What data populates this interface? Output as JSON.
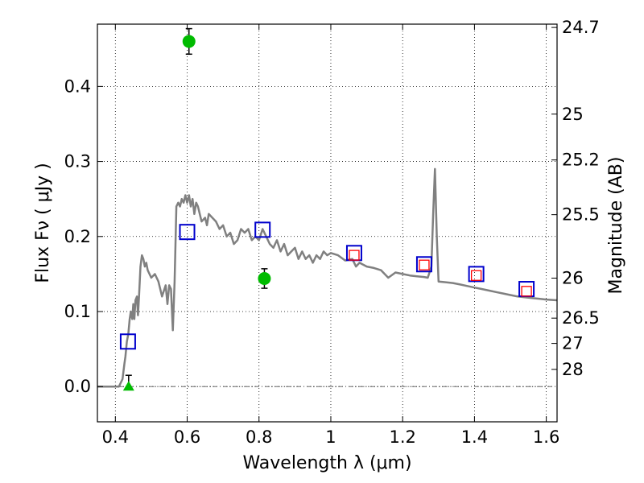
{
  "chart_data": {
    "type": "scatter",
    "title": "",
    "xlabel": "Wavelength  λ (μm)",
    "ylabel": "Flux  Fν  ( μJy )",
    "y2label": "Magnitude (AB)",
    "xlim": [
      0.35,
      1.63
    ],
    "ylim": [
      -0.047,
      0.483
    ],
    "grid": true,
    "legend": "none",
    "x_ticks": [
      {
        "value": 0.4,
        "label": "0.4"
      },
      {
        "value": 0.6,
        "label": "0.6"
      },
      {
        "value": 0.8,
        "label": "0.8"
      },
      {
        "value": 1.0,
        "label": "1"
      },
      {
        "value": 1.2,
        "label": "1.2"
      },
      {
        "value": 1.4,
        "label": "1.4"
      },
      {
        "value": 1.6,
        "label": "1.6"
      }
    ],
    "y_ticks": [
      {
        "value": 0.0,
        "label": "0.0"
      },
      {
        "value": 0.1,
        "label": "0.1"
      },
      {
        "value": 0.2,
        "label": "0.2"
      },
      {
        "value": 0.3,
        "label": "0.3"
      },
      {
        "value": 0.4,
        "label": "0.4"
      }
    ],
    "y2_ticks": [
      {
        "flux": 0.4786,
        "label": "24.7"
      },
      {
        "flux": 0.3631,
        "label": "25"
      },
      {
        "flux": 0.302,
        "label": "25.2"
      },
      {
        "flux": 0.2291,
        "label": "25.5"
      },
      {
        "flux": 0.1445,
        "label": "26"
      },
      {
        "flux": 0.0912,
        "label": "26.5"
      },
      {
        "flux": 0.0575,
        "label": "27"
      },
      {
        "flux": 0.0229,
        "label": "28"
      }
    ],
    "colors": {
      "model": "#808080",
      "model_photometry": "#0000cc",
      "observed_points": "#00bb00",
      "observed_squares": "#ff0000",
      "errorbar": "#000000",
      "grid": "#000000"
    },
    "series": [
      {
        "kind": "line",
        "x": [
          0.35,
          0.39,
          0.4,
          0.405,
          0.41,
          0.415,
          0.42,
          0.425,
          0.428,
          0.432,
          0.436,
          0.44,
          0.443,
          0.447,
          0.45,
          0.453,
          0.456,
          0.46,
          0.463,
          0.466,
          0.47,
          0.474,
          0.478,
          0.482,
          0.486,
          0.49,
          0.495,
          0.5,
          0.51,
          0.52,
          0.53,
          0.54,
          0.545,
          0.55,
          0.555,
          0.56,
          0.565,
          0.57,
          0.575,
          0.58,
          0.585,
          0.59,
          0.595,
          0.6,
          0.605,
          0.61,
          0.615,
          0.62,
          0.625,
          0.63,
          0.64,
          0.65,
          0.655,
          0.66,
          0.67,
          0.68,
          0.69,
          0.7,
          0.71,
          0.72,
          0.73,
          0.74,
          0.75,
          0.76,
          0.77,
          0.78,
          0.79,
          0.8,
          0.81,
          0.82,
          0.83,
          0.84,
          0.85,
          0.86,
          0.87,
          0.88,
          0.89,
          0.9,
          0.91,
          0.92,
          0.93,
          0.94,
          0.95,
          0.96,
          0.97,
          0.98,
          0.99,
          1.0,
          1.02,
          1.04,
          1.06,
          1.07,
          1.08,
          1.1,
          1.12,
          1.14,
          1.16,
          1.18,
          1.2,
          1.22,
          1.24,
          1.26,
          1.27,
          1.28,
          1.285,
          1.29,
          1.295,
          1.3,
          1.32,
          1.34,
          1.36,
          1.38,
          1.4,
          1.42,
          1.44,
          1.46,
          1.48,
          1.5,
          1.52,
          1.54,
          1.56,
          1.58,
          1.6,
          1.63
        ],
        "y": [
          0.0,
          0.0,
          0.0,
          0.0,
          0.0,
          0.005,
          0.01,
          0.03,
          0.04,
          0.06,
          0.07,
          0.09,
          0.1,
          0.09,
          0.11,
          0.09,
          0.115,
          0.12,
          0.095,
          0.12,
          0.16,
          0.175,
          0.17,
          0.16,
          0.165,
          0.155,
          0.15,
          0.145,
          0.15,
          0.14,
          0.12,
          0.135,
          0.11,
          0.135,
          0.13,
          0.075,
          0.14,
          0.24,
          0.245,
          0.24,
          0.25,
          0.245,
          0.255,
          0.245,
          0.255,
          0.24,
          0.25,
          0.23,
          0.245,
          0.24,
          0.22,
          0.225,
          0.215,
          0.23,
          0.225,
          0.22,
          0.21,
          0.215,
          0.2,
          0.205,
          0.19,
          0.195,
          0.21,
          0.205,
          0.21,
          0.195,
          0.2,
          0.195,
          0.21,
          0.2,
          0.19,
          0.185,
          0.195,
          0.18,
          0.19,
          0.175,
          0.18,
          0.185,
          0.17,
          0.18,
          0.17,
          0.175,
          0.165,
          0.175,
          0.17,
          0.18,
          0.175,
          0.178,
          0.175,
          0.168,
          0.17,
          0.16,
          0.165,
          0.16,
          0.158,
          0.155,
          0.145,
          0.152,
          0.15,
          0.148,
          0.147,
          0.146,
          0.145,
          0.16,
          0.23,
          0.29,
          0.2,
          0.14,
          0.139,
          0.138,
          0.136,
          0.134,
          0.132,
          0.13,
          0.128,
          0.126,
          0.124,
          0.122,
          0.12,
          0.119,
          0.118,
          0.117,
          0.116,
          0.115
        ]
      },
      {
        "kind": "open-square",
        "color": "#0000cc",
        "x": [
          0.435,
          0.6,
          0.81,
          1.065,
          1.26,
          1.405,
          1.545
        ],
        "y": [
          0.06,
          0.206,
          0.209,
          0.178,
          0.163,
          0.15,
          0.13
        ]
      },
      {
        "kind": "open-square-small",
        "color": "#ff0000",
        "x": [
          1.065,
          1.26,
          1.405,
          1.545
        ],
        "y": [
          0.175,
          0.162,
          0.148,
          0.127
        ]
      },
      {
        "kind": "filled-circle",
        "color": "#00bb00",
        "x": [
          0.605,
          0.815
        ],
        "y": [
          0.46,
          0.144
        ],
        "yerr": [
          0.017,
          0.013
        ]
      },
      {
        "kind": "filled-triangle",
        "color": "#00bb00",
        "x": [
          0.437
        ],
        "y": [
          0.0
        ],
        "yerr_upper": [
          0.015
        ]
      }
    ]
  }
}
